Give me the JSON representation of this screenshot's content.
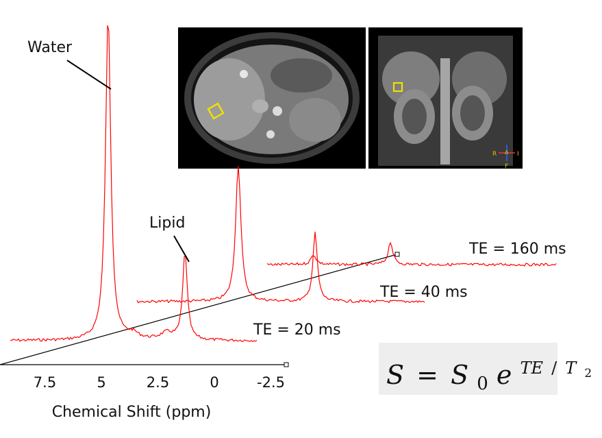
{
  "chart_data": {
    "type": "line",
    "title": "",
    "xlabel": "Chemical Shift (ppm)",
    "ylabel": "",
    "x_ticks": [
      "7.5",
      "5",
      "2.5",
      "0",
      "-2.5"
    ],
    "xlim": [
      9.5,
      -3.3
    ],
    "reversed_x": true,
    "grid": false,
    "legend": "none",
    "series": [
      {
        "name": "TE = 20 ms",
        "peaks": [
          {
            "ppm": 4.7,
            "height": 1.0
          },
          {
            "ppm": 1.3,
            "height": 0.27
          }
        ]
      },
      {
        "name": "TE = 40 ms",
        "peaks": [
          {
            "ppm": 4.7,
            "height": 0.42
          },
          {
            "ppm": 1.3,
            "height": 0.21
          }
        ]
      },
      {
        "name": "TE = 160 ms",
        "peaks": [
          {
            "ppm": 4.7,
            "height": 0.03
          },
          {
            "ppm": 1.3,
            "height": 0.07
          }
        ]
      }
    ],
    "annotations": [
      "Water",
      "Lipid"
    ],
    "equation": {
      "lhs": "S",
      "eq": "=",
      "base": "S",
      "sub": "0",
      "e": "e",
      "exp_num": "TE",
      "exp_den": "T",
      "exp_den_sub": "2"
    },
    "colors": {
      "spectrum": "#ff0000",
      "axis": "#000000",
      "equation_bg": "#eeeeee"
    }
  },
  "mri": {
    "axial_image": "axial abdominal MRI with yellow voxel marker",
    "coronal_image": "coronal abdominal MRI with yellow voxel marker",
    "orientation_letters": [
      "R",
      "A",
      "I",
      "F"
    ]
  }
}
